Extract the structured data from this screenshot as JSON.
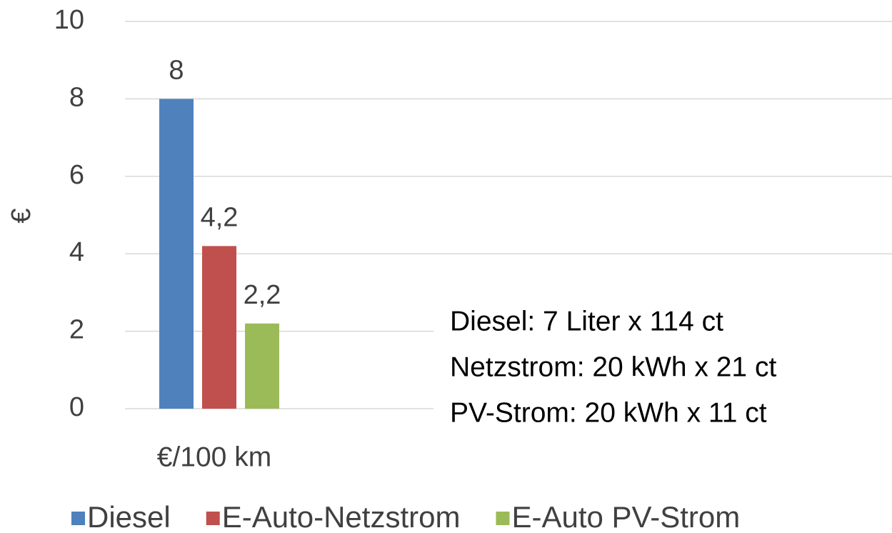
{
  "chart_data": {
    "type": "bar",
    "y_label": "€",
    "categories": [
      "€/100 km"
    ],
    "series": [
      {
        "name": "Diesel",
        "color": "#4f81bd",
        "values": [
          8
        ],
        "value_labels": [
          "8"
        ]
      },
      {
        "name": "E-Auto-Netzstrom",
        "color": "#c0504d",
        "values": [
          4.2
        ],
        "value_labels": [
          "4,2"
        ]
      },
      {
        "name": "E-Auto PV-Strom",
        "color": "#9bbb59",
        "values": [
          2.2
        ],
        "value_labels": [
          "2,2"
        ]
      }
    ],
    "ylim": [
      0,
      10
    ],
    "yticks": [
      0,
      2,
      4,
      6,
      8,
      10
    ],
    "grid": true,
    "annotations": [
      "Diesel: 7 Liter x 114 ct",
      "Netzstrom: 20 kWh x 21 ct",
      "PV-Strom: 20 kWh x 11 ct"
    ]
  }
}
